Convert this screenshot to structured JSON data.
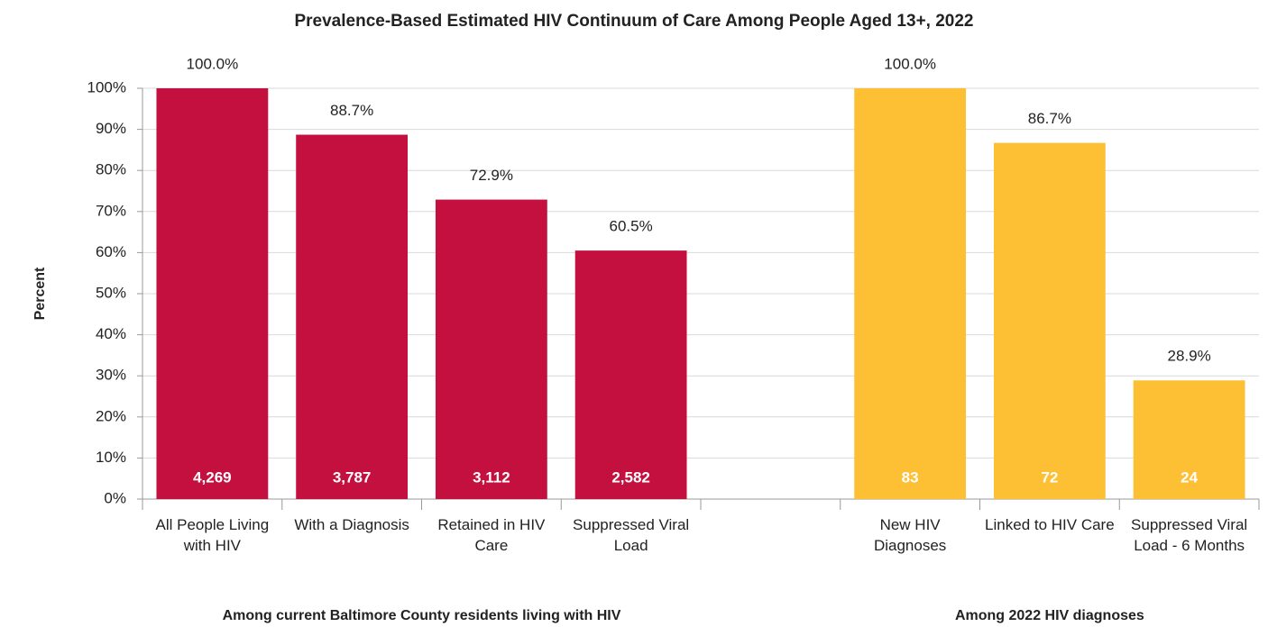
{
  "chart_data": {
    "type": "bar",
    "title": "Prevalence-Based Estimated HIV Continuum of Care Among People Aged 13+, 2022",
    "ylabel": "Percent",
    "categories": [
      "All People Living with HIV",
      "With a Diagnosis",
      "Retained in HIV Care",
      "Suppressed Viral Load",
      null,
      "New HIV Diagnoses",
      "Linked to HIV Care",
      "Suppressed Viral Load - 6 Months"
    ],
    "x_group_labels": [
      "Among current Baltimore County residents living with HIV",
      "Among 2022 HIV diagnoses"
    ],
    "series": [
      {
        "color": "#c4103f",
        "values": [
          100,
          88.7,
          72.9,
          60.5,
          null,
          null,
          null,
          null
        ],
        "value_labels": [
          "100.0%",
          "88.7%",
          "72.9%",
          "60.5%",
          null,
          null,
          null,
          null
        ],
        "counts": [
          {
            "value": 4269,
            "label": "4,269"
          },
          {
            "value": 3787,
            "label": "3,787"
          },
          {
            "value": 3112,
            "label": "3,112"
          },
          {
            "value": 2582,
            "label": "2,582"
          },
          null,
          null,
          null,
          null
        ]
      },
      {
        "color": "#fdc034",
        "values": [
          null,
          null,
          null,
          null,
          null,
          100,
          86.7,
          28.9
        ],
        "value_labels": [
          null,
          null,
          null,
          null,
          null,
          "100.0%",
          "86.7%",
          "28.9%"
        ],
        "counts": [
          null,
          null,
          null,
          null,
          null,
          83,
          72,
          24
        ]
      }
    ],
    "ylim": [
      0,
      100
    ],
    "yticks": [
      {
        "value": 0,
        "label": "0%"
      },
      {
        "value": 10,
        "label": "10%"
      },
      {
        "value": 20,
        "label": "20%"
      },
      {
        "value": 30,
        "label": "30%"
      },
      {
        "value": 40,
        "label": "40%"
      },
      {
        "value": 50,
        "label": "50%"
      },
      {
        "value": 60,
        "label": "60%"
      },
      {
        "value": 70,
        "label": "70%"
      },
      {
        "value": 80,
        "label": "80%"
      },
      {
        "value": 90,
        "label": "90%"
      },
      {
        "value": 100,
        "label": "100%"
      }
    ],
    "grid": true
  }
}
